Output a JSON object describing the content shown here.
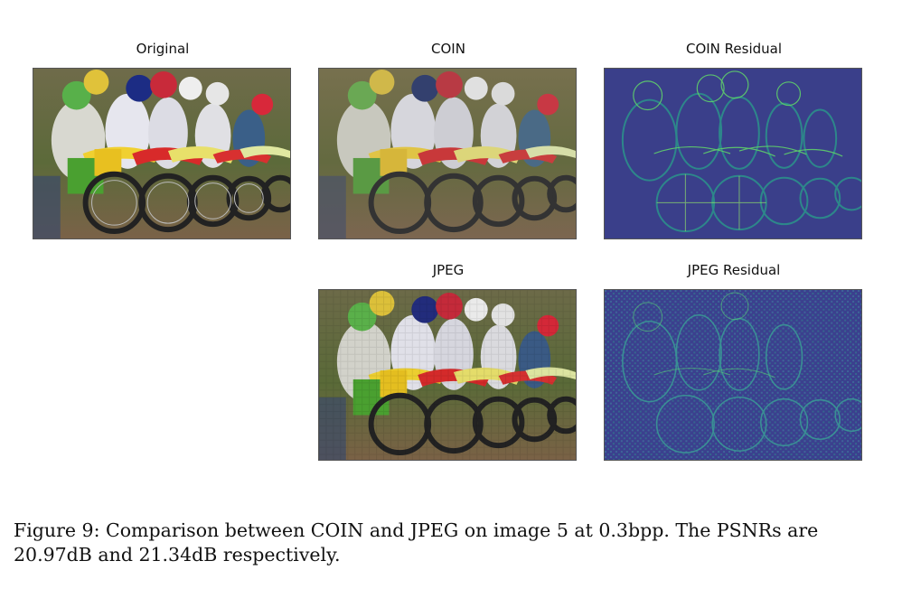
{
  "panels": {
    "original": {
      "title": "Original"
    },
    "coin": {
      "title": "COIN"
    },
    "coin_residual": {
      "title": "COIN Residual"
    },
    "jpeg": {
      "title": "JPEG"
    },
    "jpeg_residual": {
      "title": "JPEG Residual"
    }
  },
  "caption": {
    "text": "Figure 9: Comparison between COIN and JPEG on image 5 at 0.3bpp. The PSNRs are 20.97dB and 21.34dB respectively."
  },
  "colors": {
    "residual_background": "#3b3f8c",
    "residual_highlight": "#3fb57a",
    "photo_grass": "#5a6a3a",
    "photo_dirt": "#7a6248"
  }
}
